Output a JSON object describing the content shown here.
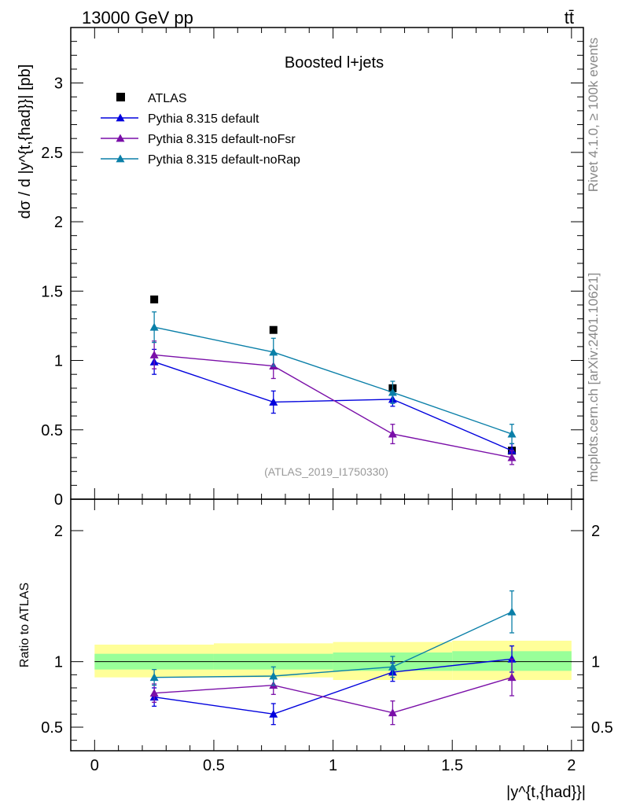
{
  "header": {
    "process": "13000 GeV pp",
    "final_state": "tt̄",
    "rivet_label": "Rivet 4.1.0, ≥ 100k events",
    "mcplots_label": "mcplots.cern.ch [arXiv:2401.10621]"
  },
  "chart_data": [
    {
      "type": "scatter",
      "panel": "main",
      "title": "Boosted l+jets",
      "watermark": "(ATLAS_2019_I1750330)",
      "ylabel": "dσ / d |y^{t,{had}}| [pb]",
      "xlabel": "",
      "xlim": [
        -0.1,
        2.05
      ],
      "ylim": [
        0,
        3.4
      ],
      "yticks": [
        0,
        0.5,
        1,
        1.5,
        2,
        2.5,
        3
      ],
      "ytick_labels": [
        "0",
        "0.5",
        "1",
        "1.5",
        "2",
        "2.5",
        "3"
      ],
      "legend_position": "top-left",
      "x": [
        0.25,
        0.75,
        1.25,
        1.75
      ],
      "series": [
        {
          "name": "ATLAS",
          "marker": "square",
          "color": "#000000",
          "values": [
            1.44,
            1.22,
            0.8,
            0.35
          ]
        },
        {
          "name": "Pythia 8.315 default",
          "marker": "triangle",
          "color": "#0000dd",
          "values": [
            0.99,
            0.7,
            0.72,
            0.35
          ],
          "errors": [
            0.09,
            0.08,
            0.05,
            0.05
          ]
        },
        {
          "name": "Pythia 8.315 default-noFsr",
          "marker": "triangle",
          "color": "#7a0fa8",
          "values": [
            1.04,
            0.96,
            0.47,
            0.3
          ],
          "errors": [
            0.1,
            0.09,
            0.07,
            0.05
          ]
        },
        {
          "name": "Pythia 8.315 default-noRap",
          "marker": "triangle",
          "color": "#0a7fa8",
          "values": [
            1.24,
            1.06,
            0.77,
            0.47
          ],
          "errors": [
            0.11,
            0.1,
            0.08,
            0.07
          ]
        }
      ]
    },
    {
      "type": "scatter",
      "panel": "ratio",
      "ylabel": "Ratio to ATLAS",
      "xlabel": "|y^{t,{had}}|",
      "xlim": [
        -0.1,
        2.05
      ],
      "ylim": [
        0.32,
        2.24
      ],
      "xticks": [
        0,
        0.5,
        1,
        1.5,
        2
      ],
      "xtick_labels": [
        "0",
        "0.5",
        "1",
        "1.5",
        "2"
      ],
      "yticks": [
        0.5,
        1,
        2
      ],
      "ytick_labels": [
        "0.5",
        "1",
        "2"
      ],
      "x": [
        0.25,
        0.75,
        1.25,
        1.75
      ],
      "bins": [
        [
          0,
          0.5
        ],
        [
          0.5,
          1
        ],
        [
          1,
          1.5
        ],
        [
          1.5,
          2
        ]
      ],
      "uncertainty_bands": {
        "inner_color": "#99ff99",
        "outer_color": "#ffff99",
        "inner": [
          [
            0.94,
            1.06
          ],
          [
            0.94,
            1.06
          ],
          [
            0.93,
            1.07
          ],
          [
            0.93,
            1.08
          ]
        ],
        "outer": [
          [
            0.88,
            1.13
          ],
          [
            0.88,
            1.14
          ],
          [
            0.86,
            1.15
          ],
          [
            0.86,
            1.16
          ]
        ]
      },
      "series": [
        {
          "name": "Pythia 8.315 default",
          "color": "#0000dd",
          "values": [
            0.73,
            0.6,
            0.92,
            1.02
          ],
          "errors": [
            0.07,
            0.08,
            0.07,
            0.1
          ]
        },
        {
          "name": "Pythia 8.315 default-noFsr",
          "color": "#7a0fa8",
          "values": [
            0.76,
            0.82,
            0.61,
            0.88
          ],
          "errors": [
            0.07,
            0.07,
            0.09,
            0.14
          ]
        },
        {
          "name": "Pythia 8.315 default-noRap",
          "color": "#0a7fa8",
          "values": [
            0.88,
            0.89,
            0.96,
            1.38
          ],
          "errors": [
            0.06,
            0.07,
            0.08,
            0.16
          ]
        }
      ]
    }
  ]
}
